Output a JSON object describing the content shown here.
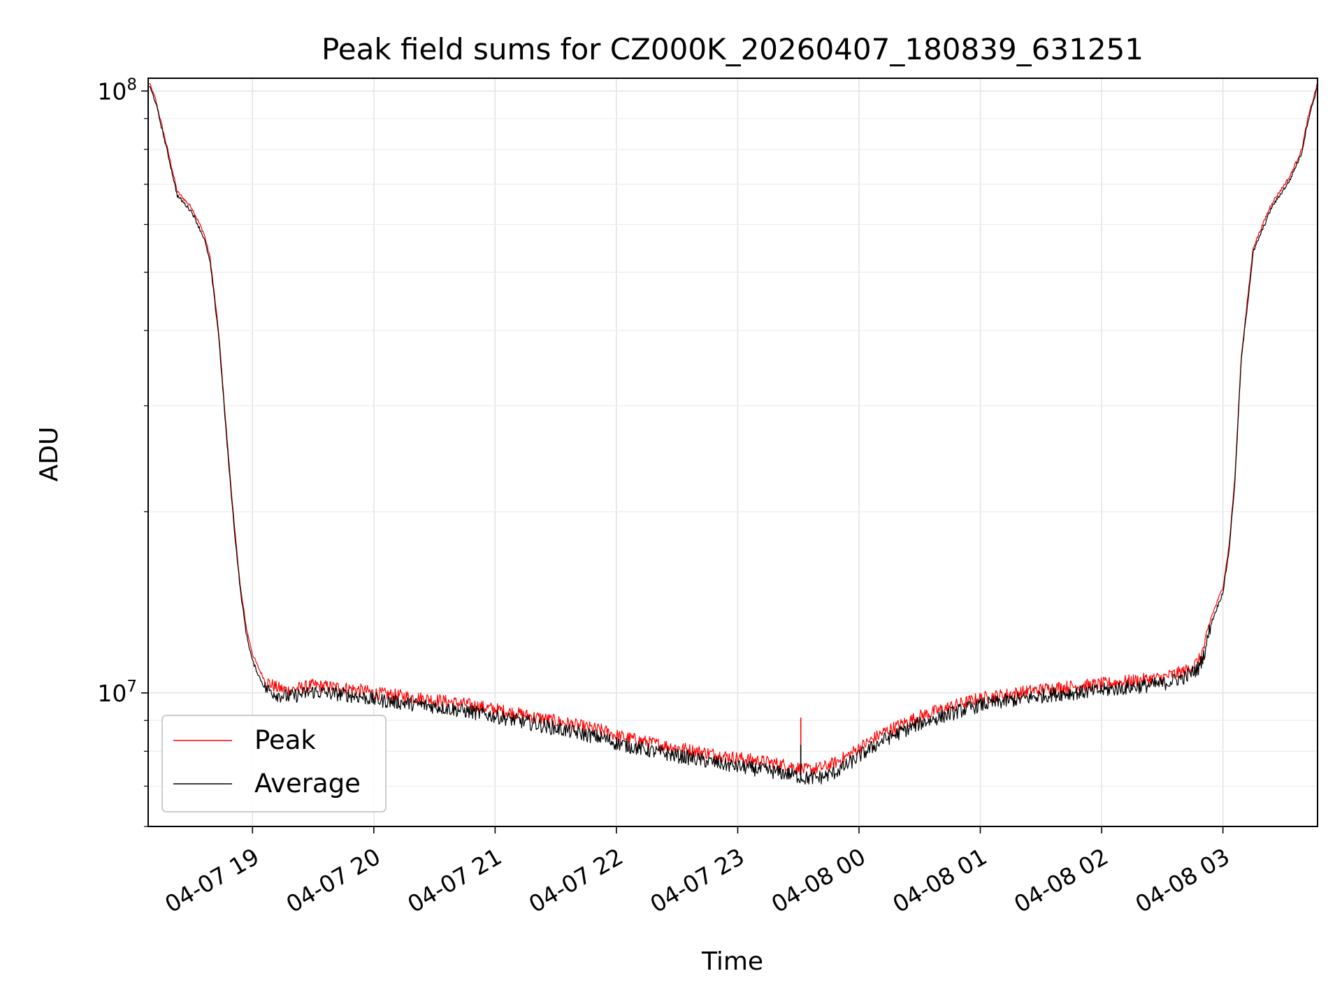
{
  "chart_data": {
    "type": "line",
    "title": "Peak field sums for CZ000K_20260407_180839_631251",
    "xlabel": "Time",
    "ylabel": "ADU",
    "yscale": "log",
    "grid": true,
    "legend_position": "lower-left",
    "x_unit": "hours since 2026-04-07 00:00",
    "xlim": [
      18.14,
      27.78
    ],
    "ylim": [
      6000000,
      105000000
    ],
    "x_ticks": [
      {
        "value": 19,
        "label": "04-07 19"
      },
      {
        "value": 20,
        "label": "04-07 20"
      },
      {
        "value": 21,
        "label": "04-07 21"
      },
      {
        "value": 22,
        "label": "04-07 22"
      },
      {
        "value": 23,
        "label": "04-07 23"
      },
      {
        "value": 24,
        "label": "04-08 00"
      },
      {
        "value": 25,
        "label": "04-08 01"
      },
      {
        "value": 26,
        "label": "04-08 02"
      },
      {
        "value": 27,
        "label": "04-08 03"
      }
    ],
    "y_ticks": [
      {
        "value": 10000000,
        "base": "10",
        "exp": "7"
      },
      {
        "value": 100000000,
        "base": "10",
        "exp": "8"
      }
    ],
    "x": [
      18.15,
      18.2,
      18.3,
      18.38,
      18.5,
      18.6,
      18.65,
      18.72,
      18.8,
      18.85,
      18.9,
      18.95,
      19.0,
      19.05,
      19.1,
      19.2,
      19.3,
      19.4,
      19.5,
      19.6,
      19.75,
      19.9,
      20.0,
      20.2,
      20.5,
      20.8,
      21.0,
      21.3,
      21.6,
      21.9,
      22.0,
      22.3,
      22.6,
      22.9,
      23.2,
      23.45,
      23.5,
      23.55,
      23.6,
      23.7,
      23.8,
      23.9,
      24.0,
      24.2,
      24.5,
      24.8,
      25.0,
      25.3,
      25.6,
      25.9,
      26.2,
      26.5,
      26.7,
      26.8,
      26.85,
      26.9,
      27.0,
      27.05,
      27.1,
      27.15,
      27.25,
      27.4,
      27.55,
      27.65,
      27.7,
      27.78
    ],
    "series": [
      {
        "name": "Peak",
        "color": "#ff0000",
        "width": 1.2,
        "noise_amp": 0.025,
        "values": [
          103000000,
          97000000,
          80000000,
          68000000,
          64000000,
          58000000,
          53000000,
          40000000,
          25000000,
          19000000,
          15000000,
          12800000,
          11600000,
          11000000,
          10500000,
          10200000,
          10100000,
          10200000,
          10300000,
          10250000,
          10200000,
          10100000,
          10000000,
          9900000,
          9750000,
          9550000,
          9400000,
          9150000,
          8900000,
          8650000,
          8500000,
          8250000,
          8050000,
          7850000,
          7700000,
          7560000,
          7500000,
          7450000,
          7470000,
          7520000,
          7650000,
          7850000,
          8100000,
          8600000,
          9150000,
          9550000,
          9800000,
          10000000,
          10200000,
          10300000,
          10450000,
          10600000,
          10900000,
          11300000,
          12000000,
          13300000,
          15000000,
          17500000,
          23000000,
          36000000,
          55000000,
          65000000,
          72000000,
          80000000,
          90000000,
          103000000
        ]
      },
      {
        "name": "Average",
        "color": "#000000",
        "width": 1.2,
        "noise_amp": 0.028,
        "values": [
          102000000,
          96000000,
          79000000,
          67000000,
          63000000,
          57000000,
          52000000,
          39500000,
          24500000,
          18700000,
          14800000,
          12500000,
          11300000,
          10700000,
          10200000,
          9950000,
          9850000,
          9950000,
          10050000,
          10000000,
          9950000,
          9850000,
          9750000,
          9650000,
          9500000,
          9300000,
          9150000,
          8900000,
          8650000,
          8400000,
          8250000,
          8000000,
          7800000,
          7600000,
          7450000,
          7320000,
          7270000,
          7220000,
          7220000,
          7250000,
          7380000,
          7580000,
          7850000,
          8350000,
          8900000,
          9300000,
          9550000,
          9750000,
          9950000,
          10050000,
          10200000,
          10350000,
          10650000,
          11000000,
          11700000,
          13000000,
          14700000,
          17200000,
          22600000,
          35500000,
          54000000,
          64000000,
          71000000,
          79000000,
          89000000,
          102000000
        ]
      }
    ],
    "spikes": [
      {
        "series": "Peak",
        "x": 23.52,
        "y": 9100000
      },
      {
        "series": "Average",
        "x": 23.52,
        "y": 8200000
      }
    ]
  }
}
